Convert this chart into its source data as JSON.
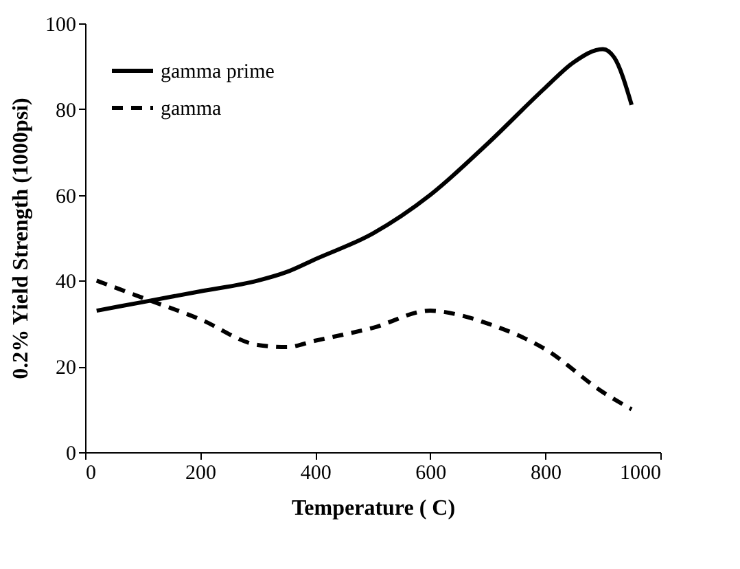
{
  "chart_data": {
    "type": "line",
    "xlabel": "Temperature ( C)",
    "ylabel": "0.2% Yield Strength (1000psi)",
    "xlim": [
      0,
      1000
    ],
    "ylim": [
      0,
      100
    ],
    "xticks": [
      0,
      200,
      400,
      600,
      800,
      1000
    ],
    "yticks": [
      0,
      20,
      40,
      60,
      80,
      100
    ],
    "grid": false,
    "legend": "top left",
    "marker": "none",
    "series": [
      {
        "name": "gamma prime",
        "color": "#000000",
        "line_style": "solid",
        "x": [
          20,
          100,
          200,
          300,
          350,
          400,
          500,
          600,
          700,
          800,
          850,
          900,
          920,
          950
        ],
        "values": [
          33,
          35,
          37.5,
          40,
          42,
          45,
          51,
          60,
          72,
          85,
          91,
          94,
          92,
          81
        ]
      },
      {
        "name": "gamma",
        "color": "#000000",
        "line_style": "dashed",
        "x": [
          20,
          100,
          200,
          300,
          350,
          400,
          500,
          600,
          650,
          700,
          800,
          900,
          950
        ],
        "values": [
          40,
          36,
          31,
          25,
          24.5,
          26,
          29,
          33,
          32,
          30,
          24,
          14,
          10
        ]
      }
    ]
  }
}
